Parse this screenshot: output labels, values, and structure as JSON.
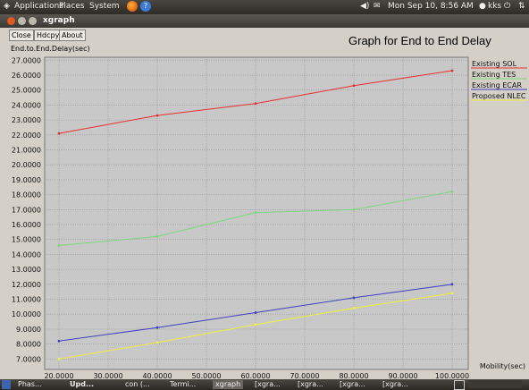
{
  "top_panel": {
    "menus": [
      "Applications",
      "Places",
      "System"
    ],
    "datetime": "Mon Sep 10,  8:56 AM",
    "user": "kks",
    "icons": [
      "ubuntu-logo-icon",
      "firefox-icon",
      "help-icon",
      "volume-icon",
      "mail-icon",
      "user-icon",
      "power-icon",
      "network-icon"
    ]
  },
  "window": {
    "title": "xgraph"
  },
  "toolbar": {
    "close_label": "Close",
    "hdcpy_label": "Hdcpy",
    "about_label": "About"
  },
  "graph": {
    "title": "Graph for End to End Delay"
  },
  "chart_data": {
    "type": "line",
    "title": "Graph for End to End Delay",
    "xlabel": "Mobility(sec)",
    "ylabel": "End.to.End.Delay(sec)",
    "xlim": [
      20,
      100
    ],
    "ylim": [
      6.3,
      27.2
    ],
    "xticks": [
      "20.0000",
      "30.0000",
      "40.0000",
      "50.0000",
      "60.0000",
      "70.0000",
      "80.0000",
      "90.0000",
      "100.0000"
    ],
    "yticks": [
      "7.0000",
      "8.0000",
      "9.0000",
      "10.0000",
      "11.0000",
      "12.0000",
      "13.0000",
      "14.0000",
      "15.0000",
      "16.0000",
      "17.0000",
      "18.0000",
      "19.0000",
      "20.0000",
      "21.0000",
      "22.0000",
      "23.0000",
      "24.0000",
      "25.0000",
      "26.0000",
      "27.0000"
    ],
    "grid": true,
    "legend_position": "right",
    "series": [
      {
        "name": "Existing SOL",
        "color": "#e53030",
        "x": [
          20,
          40,
          60,
          80,
          100
        ],
        "values": [
          22.1,
          23.3,
          24.1,
          25.3,
          26.3
        ]
      },
      {
        "name": "Existing TES",
        "color": "#7ed87e",
        "x": [
          20,
          40,
          60,
          80,
          100
        ],
        "values": [
          14.6,
          15.2,
          16.8,
          17.0,
          18.2
        ]
      },
      {
        "name": "Existing ECAR",
        "color": "#4040c0",
        "x": [
          20,
          40,
          60,
          80,
          100
        ],
        "values": [
          8.2,
          9.1,
          10.1,
          11.1,
          12.0
        ]
      },
      {
        "name": "Proposed NLEC",
        "color": "#f0f040",
        "x": [
          20,
          40,
          60,
          80,
          100
        ],
        "values": [
          7.0,
          8.1,
          9.3,
          10.4,
          11.4
        ]
      }
    ]
  },
  "taskbar": {
    "items": [
      "Phas...",
      "Upd...",
      "con (...",
      "Termi...",
      "xgraph",
      "[xgra...",
      "[xgra...",
      "[xgra...",
      "[xgra..."
    ]
  }
}
